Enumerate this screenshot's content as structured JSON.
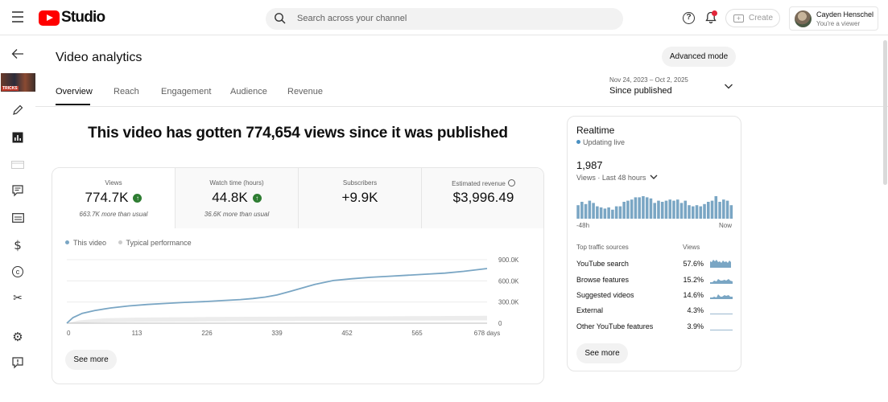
{
  "topbar": {
    "studio_label": "Studio",
    "search_placeholder": "Search across your channel",
    "create_label": "Create",
    "help_glyph": "?",
    "account_name": "Cayden Henschel",
    "account_role": "You're a viewer"
  },
  "sidebar": {
    "thumbnail_text": "TRICKS"
  },
  "header": {
    "title": "Video analytics",
    "advanced_mode": "Advanced mode",
    "tabs": [
      {
        "label": "Overview"
      },
      {
        "label": "Reach"
      },
      {
        "label": "Engagement"
      },
      {
        "label": "Audience"
      },
      {
        "label": "Revenue"
      }
    ],
    "date_range": "Nov 24, 2023 – Oct 2, 2025",
    "date_label": "Since published"
  },
  "headline": "This video has gotten 774,654 views since it was published",
  "metrics": [
    {
      "label": "Views",
      "value": "774.7K",
      "sub": "663.7K more than usual",
      "badge": "up"
    },
    {
      "label": "Watch time (hours)",
      "value": "44.8K",
      "sub": "36.6K more than usual",
      "badge": "up"
    },
    {
      "label": "Subscribers",
      "value": "+9.9K",
      "sub": ""
    },
    {
      "label": "Estimated revenue",
      "value": "$3,996.49",
      "sub": ""
    }
  ],
  "legend": {
    "this_video": "This video",
    "typical": "Typical performance"
  },
  "see_more": "See more",
  "colors": {
    "this_video": "#7aa6c4",
    "typical_band": "#ececec",
    "accent_green": "#2e7d32",
    "brand_red": "#ff0000"
  },
  "chart_data": {
    "type": "line",
    "x_tick_labels": [
      "0",
      "113",
      "226",
      "339",
      "452",
      "565",
      "678 days"
    ],
    "y_tick_labels": [
      "900.0K",
      "600.0K",
      "300.0K",
      "0"
    ],
    "x_range": [
      0,
      678
    ],
    "ylim": [
      0,
      900000
    ],
    "grid": true,
    "series": [
      {
        "name": "This video",
        "x": [
          0,
          10,
          25,
          45,
          70,
          100,
          130,
          160,
          190,
          220,
          250,
          280,
          300,
          320,
          339,
          360,
          380,
          400,
          430,
          460,
          490,
          520,
          550,
          580,
          610,
          640,
          678
        ],
        "y": [
          0,
          80000,
          140000,
          180000,
          215000,
          245000,
          265000,
          280000,
          295000,
          305000,
          320000,
          335000,
          350000,
          370000,
          400000,
          450000,
          500000,
          550000,
          605000,
          630000,
          650000,
          665000,
          680000,
          695000,
          710000,
          735000,
          774654
        ]
      },
      {
        "name": "Typical performance",
        "x": [
          0,
          20,
          60,
          113,
          226,
          339,
          452,
          565,
          678
        ],
        "y_low": [
          0,
          5000,
          12000,
          18000,
          25000,
          30000,
          35000,
          38000,
          40000
        ],
        "y_high": [
          0,
          40000,
          70000,
          80000,
          88000,
          92000,
          96000,
          100000,
          105000
        ]
      }
    ]
  },
  "realtime": {
    "title": "Realtime",
    "status": "Updating live",
    "count": "1,987",
    "metric_label": "Views · Last 48 hours",
    "axis_left": "-48h",
    "axis_right": "Now",
    "bars": [
      60,
      75,
      65,
      80,
      70,
      55,
      50,
      45,
      50,
      40,
      55,
      55,
      75,
      80,
      85,
      95,
      95,
      100,
      95,
      90,
      70,
      80,
      75,
      80,
      85,
      80,
      85,
      70,
      80,
      60,
      55,
      60,
      55,
      65,
      75,
      80,
      100,
      75,
      85,
      80,
      60
    ],
    "sources_header": "Top traffic sources",
    "views_header": "Views",
    "sources": [
      {
        "name": "YouTube search",
        "pct": "57.6%"
      },
      {
        "name": "Browse features",
        "pct": "15.2%"
      },
      {
        "name": "Suggested videos",
        "pct": "14.6%"
      },
      {
        "name": "External",
        "pct": "4.3%"
      },
      {
        "name": "Other YouTube features",
        "pct": "3.9%"
      }
    ]
  }
}
